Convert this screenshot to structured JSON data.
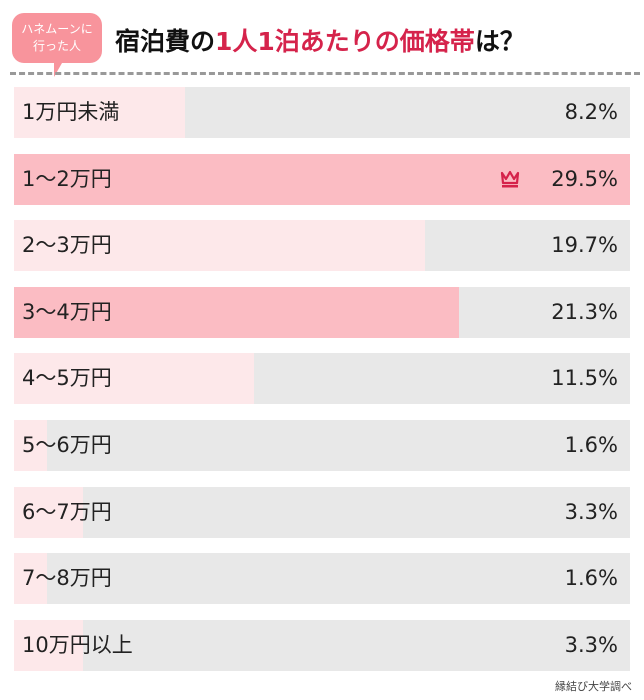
{
  "header": {
    "badge_line1": "ハネムーンに",
    "badge_line2": "行った人",
    "title_pre": "宿泊費の",
    "title_highlight": "1人1泊あたりの価格帯",
    "title_post": "は？"
  },
  "colors": {
    "accent": "#d5234b",
    "fill_light": "#fde8ea",
    "fill_top": "#fbbcc3",
    "track": "#e8e8e8"
  },
  "chart_data": {
    "type": "bar",
    "orientation": "horizontal",
    "categories": [
      "1万円未満",
      "1〜2万円",
      "2〜3万円",
      "3〜4万円",
      "4〜5万円",
      "5〜6万円",
      "6〜7万円",
      "7〜8万円",
      "10万円以上"
    ],
    "values": [
      8.2,
      29.5,
      19.7,
      21.3,
      11.5,
      1.6,
      3.3,
      1.6,
      3.3
    ],
    "value_labels": [
      "8.2%",
      "29.5%",
      "19.7%",
      "21.3%",
      "11.5%",
      "1.6%",
      "3.3%",
      "1.6%",
      "3.3%"
    ],
    "highlighted": [
      1,
      3
    ],
    "top_icon": "crown-icon",
    "xlim": [
      0,
      29.5
    ]
  },
  "source": "縁結び大学調べ"
}
